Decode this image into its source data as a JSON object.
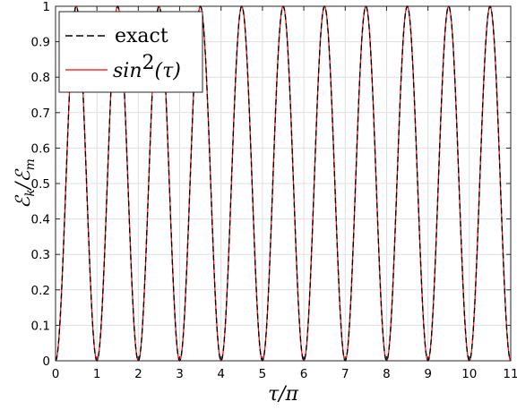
{
  "chart_data": {
    "type": "line",
    "xlabel": "τ/π",
    "ylabel": "ℰ",
    "ylabel_sub1": "k",
    "ylabel_slash": "/ℰ",
    "ylabel_sub2": "m",
    "xlim": [
      0,
      11
    ],
    "ylim": [
      0,
      1
    ],
    "xticks": [
      "0",
      "1",
      "2",
      "3",
      "4",
      "5",
      "6",
      "7",
      "8",
      "9",
      "10",
      "11"
    ],
    "yticks": [
      "0",
      "0.1",
      "0.2",
      "0.3",
      "0.4",
      "0.5",
      "0.6",
      "0.7",
      "0.8",
      "0.9",
      "1"
    ],
    "grid": true,
    "legend_position": "top-left",
    "series": [
      {
        "name": "exact",
        "style": "dashed",
        "color": "#000000",
        "function": "sin^2(pi*x)",
        "samples": 881
      },
      {
        "name": "sin",
        "name_sup": "2",
        "name_arg": "(τ)",
        "style": "solid",
        "color": "#ff0000",
        "function": "sin^2(pi*x)",
        "samples": 881
      }
    ]
  }
}
